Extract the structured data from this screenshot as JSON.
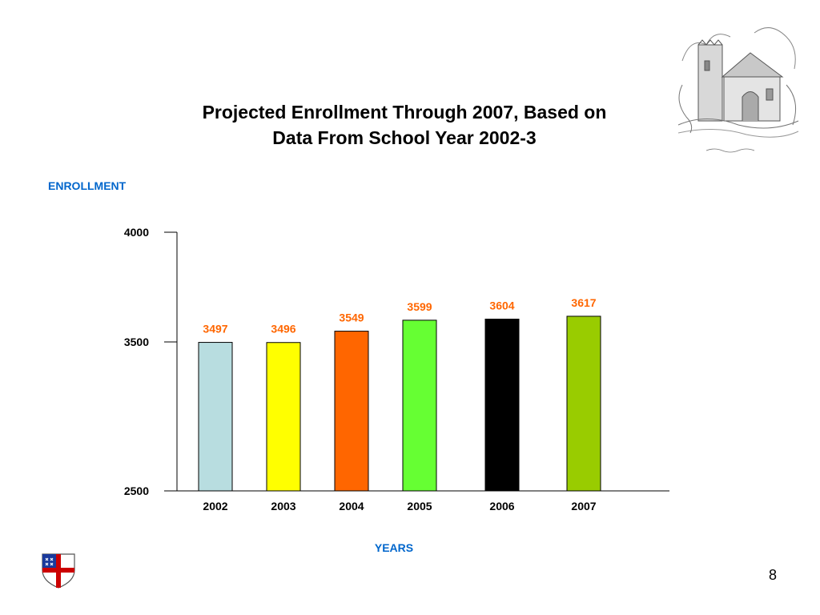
{
  "slide": {
    "title_line1": "Projected Enrollment Through 2007, Based on",
    "title_line2": "Data From School Year 2002-3",
    "page_number": "8"
  },
  "chart_data": {
    "type": "bar",
    "title": "Projected Enrollment Through 2007, Based on Data From School Year 2002-3",
    "xlabel": "YEARS",
    "ylabel": "ENROLLMENT",
    "categories": [
      "2002",
      "2003",
      "2004",
      "2005",
      "2006",
      "2007"
    ],
    "values": [
      3497,
      3496,
      3549,
      3599,
      3604,
      3617
    ],
    "colors": [
      "#b8dde0",
      "#ffff00",
      "#ff6600",
      "#66ff33",
      "#000000",
      "#99cc00"
    ],
    "yticks": [
      2500,
      3500,
      4000
    ],
    "ylim": [
      2500,
      4000
    ],
    "value_label_color": "#ff6600",
    "axis_label_color": "#0066cc",
    "grid": false,
    "legend": "none"
  }
}
